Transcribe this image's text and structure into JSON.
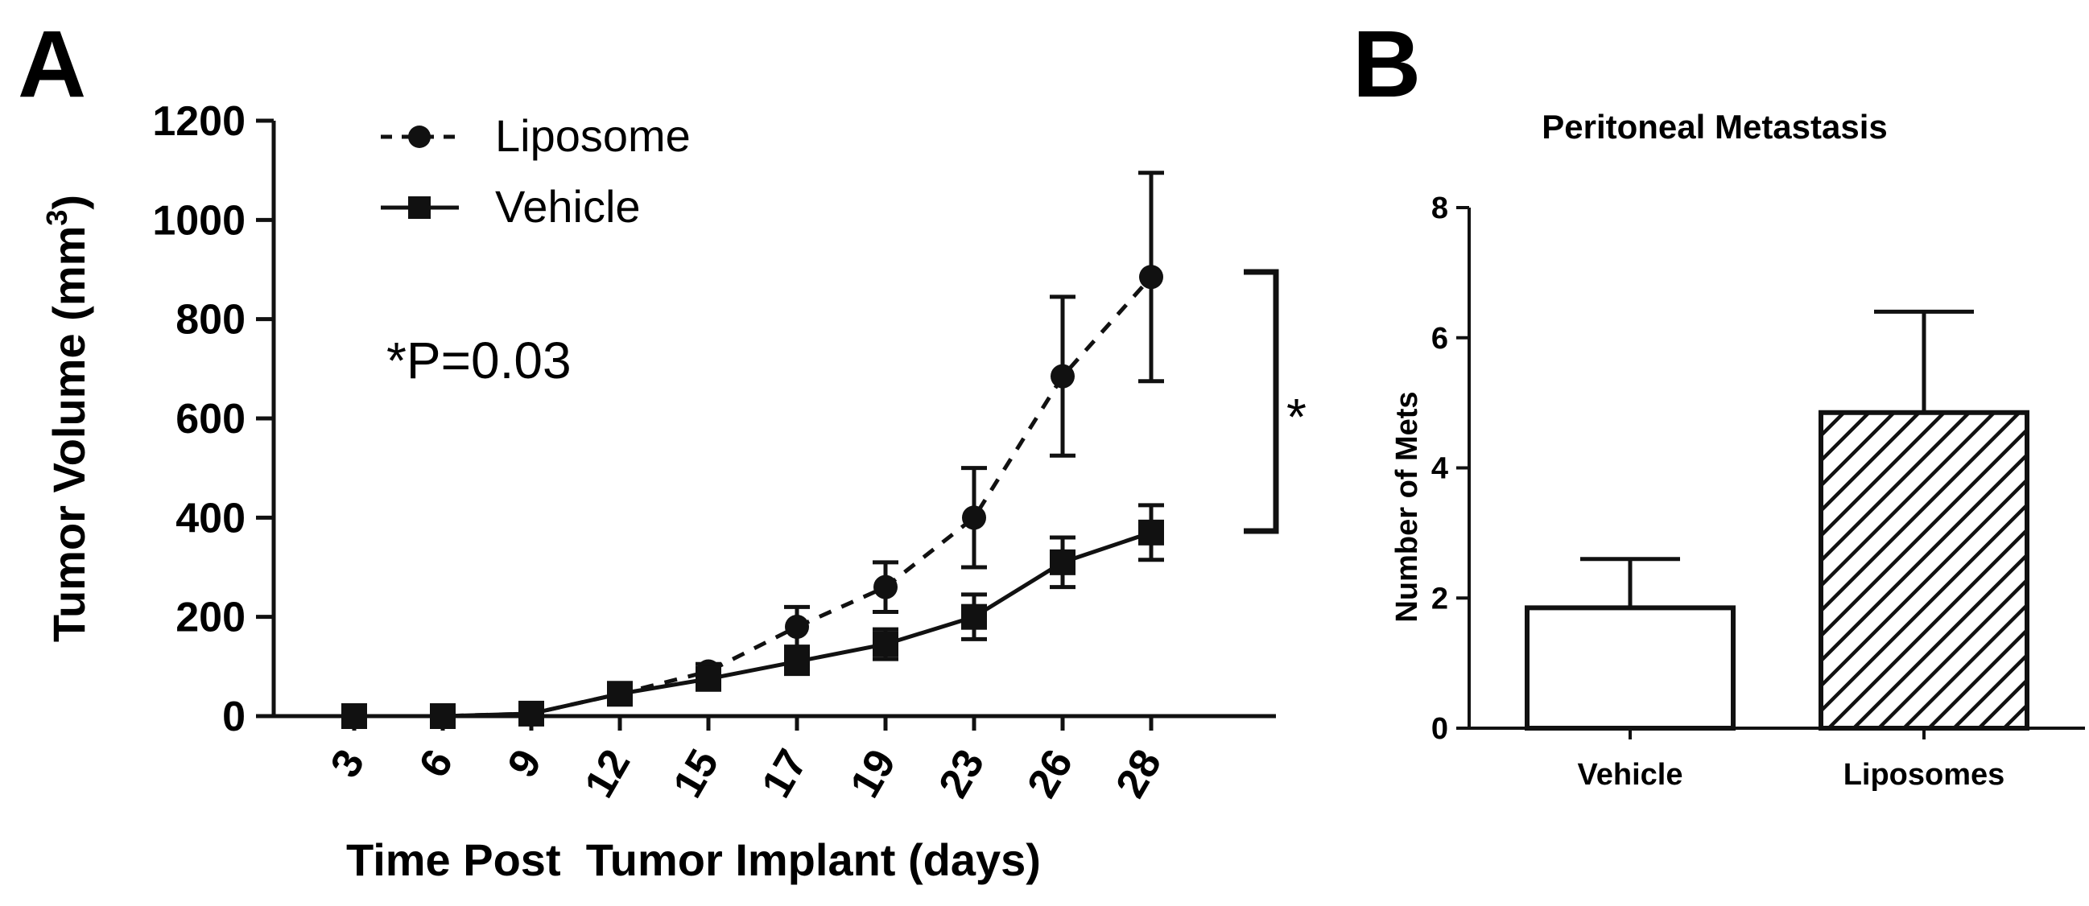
{
  "panels": {
    "a_label": "A",
    "b_label": "B"
  },
  "chart_data": [
    {
      "type": "line",
      "panel": "A",
      "title": "",
      "xlabel": "Time Post  Tumor Implant (days)",
      "ylabel_main": "Tumor Volume (mm",
      "ylabel_sup": "3",
      "ylabel_close": ")",
      "ylim": [
        0,
        1200
      ],
      "yticks": [
        "0",
        "200",
        "400",
        "600",
        "800",
        "1000",
        "1200"
      ],
      "ytick_values": [
        0,
        200,
        400,
        600,
        800,
        1000,
        1200
      ],
      "categories": [
        "3",
        "6",
        "9",
        "12",
        "15",
        "17",
        "19",
        "23",
        "26",
        "28"
      ],
      "series": [
        {
          "name": "Liposome",
          "style": "dashed",
          "marker": "circle",
          "values": [
            0,
            0,
            5,
            45,
            90,
            180,
            260,
            400,
            685,
            885
          ],
          "errors": [
            0,
            0,
            0,
            0,
            15,
            40,
            50,
            100,
            160,
            210
          ]
        },
        {
          "name": "Vehicle",
          "style": "solid",
          "marker": "square",
          "values": [
            0,
            0,
            5,
            45,
            75,
            110,
            145,
            200,
            310,
            370
          ],
          "errors": [
            0,
            0,
            0,
            0,
            15,
            25,
            30,
            45,
            50,
            55
          ]
        }
      ],
      "annotation": "*P=0.03",
      "significance_marker": "*",
      "grid": false,
      "legend_position": "top-left"
    },
    {
      "type": "bar",
      "panel": "B",
      "title": "Peritoneal Metastasis",
      "xlabel": "",
      "ylabel": "Number of Mets",
      "ylim": [
        0,
        8
      ],
      "yticks": [
        "0",
        "2",
        "4",
        "6",
        "8"
      ],
      "ytick_values": [
        0,
        2,
        4,
        6,
        8
      ],
      "categories": [
        "Vehicle",
        "Liposomes"
      ],
      "values": [
        1.85,
        4.85
      ],
      "errors": [
        0.75,
        1.55
      ],
      "fills": [
        "none",
        "hatched"
      ],
      "grid": false
    }
  ],
  "colors": {
    "ink": "#111111",
    "background": "#ffffff"
  }
}
